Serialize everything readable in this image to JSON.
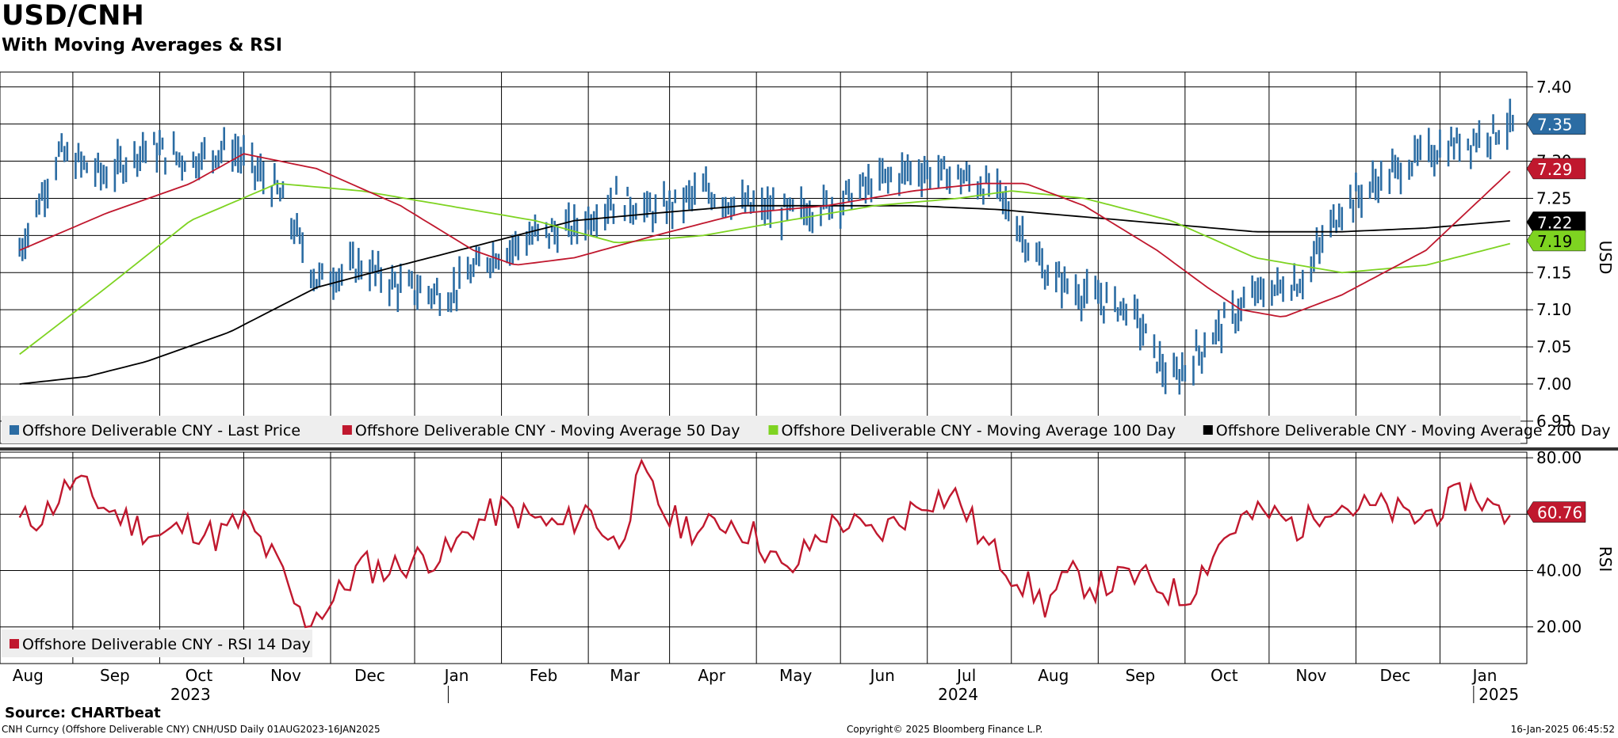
{
  "title": "USD/CNH",
  "subtitle": "With Moving Averages & RSI",
  "source": "Source: CHARTbeat",
  "footer": {
    "left": "CNH Curncy (Offshore Deliverable CNY) CNH/USD  Daily 01AUG2023-16JAN2025",
    "center": "Copyright© 2025 Bloomberg Finance L.P.",
    "right": "16-Jan-2025 06:45:52"
  },
  "colors": {
    "price": "#2b6ca3",
    "ma50": "#c0182e",
    "ma100": "#7ed321",
    "ma200": "#000000",
    "rsi": "#c0182e"
  },
  "chart_data": [
    {
      "type": "bar",
      "note_type": "ohlc price bars with moving-average lines",
      "ylabel": "USD",
      "ylim": [
        6.92,
        7.42
      ],
      "yticks": [
        "7.40",
        "7.35",
        "7.30",
        "7.25",
        "7.20",
        "7.15",
        "7.10",
        "7.05",
        "7.00",
        "6.95"
      ],
      "grid": true,
      "legend_placement": "bottom",
      "months": [
        "Aug",
        "Sep",
        "Oct",
        "Nov",
        "Dec",
        "Jan",
        "Feb",
        "Mar",
        "Apr",
        "May",
        "Jun",
        "Jul",
        "Aug",
        "Sep",
        "Oct",
        "Nov",
        "Dec",
        "Jan"
      ],
      "years": [
        "2023",
        "2024",
        "2025"
      ],
      "series": [
        {
          "name": "Offshore Deliverable CNY - Last Price",
          "key": "price",
          "last_label": "7.35",
          "x": [
            "2023-08-01",
            "2023-08-15",
            "2023-09-01",
            "2023-09-15",
            "2023-10-01",
            "2023-10-15",
            "2023-11-01",
            "2023-11-15",
            "2023-12-01",
            "2023-12-15",
            "2024-01-01",
            "2024-01-15",
            "2024-02-01",
            "2024-02-15",
            "2024-03-01",
            "2024-03-15",
            "2024-04-01",
            "2024-04-15",
            "2024-05-01",
            "2024-05-15",
            "2024-06-01",
            "2024-06-15",
            "2024-07-01",
            "2024-07-15",
            "2024-08-01",
            "2024-08-15",
            "2024-09-01",
            "2024-09-15",
            "2024-10-01",
            "2024-10-15",
            "2024-11-01",
            "2024-11-15",
            "2024-12-01",
            "2024-12-15",
            "2025-01-01",
            "2025-01-15"
          ],
          "values": [
            7.18,
            7.31,
            7.28,
            7.32,
            7.3,
            7.32,
            7.26,
            7.14,
            7.16,
            7.13,
            7.12,
            7.17,
            7.2,
            7.21,
            7.25,
            7.23,
            7.26,
            7.24,
            7.23,
            7.24,
            7.27,
            7.29,
            7.28,
            7.26,
            7.15,
            7.12,
            7.1,
            7.0,
            7.07,
            7.12,
            7.14,
            7.24,
            7.28,
            7.31,
            7.33,
            7.35
          ]
        },
        {
          "name": "Offshore Deliverable CNY - Moving Average 50 Day",
          "key": "ma50",
          "last_label": "7.29",
          "x": [
            "2023-08-01",
            "2023-09-01",
            "2023-10-01",
            "2023-10-20",
            "2023-11-15",
            "2023-12-15",
            "2024-01-10",
            "2024-01-25",
            "2024-02-15",
            "2024-03-15",
            "2024-04-15",
            "2024-05-15",
            "2024-06-15",
            "2024-07-10",
            "2024-07-25",
            "2024-08-15",
            "2024-09-10",
            "2024-09-28",
            "2024-10-10",
            "2024-10-25",
            "2024-11-15",
            "2024-12-15",
            "2025-01-15"
          ],
          "values": [
            7.18,
            7.23,
            7.27,
            7.31,
            7.29,
            7.24,
            7.18,
            7.16,
            7.17,
            7.2,
            7.23,
            7.24,
            7.26,
            7.27,
            7.27,
            7.24,
            7.18,
            7.13,
            7.1,
            7.09,
            7.12,
            7.18,
            7.29
          ]
        },
        {
          "name": "Offshore Deliverable CNY - Moving Average 100 Day",
          "key": "ma100",
          "last_label": "7.19",
          "x": [
            "2023-08-01",
            "2023-09-01",
            "2023-10-01",
            "2023-11-01",
            "2023-12-01",
            "2024-01-01",
            "2024-02-01",
            "2024-03-01",
            "2024-04-01",
            "2024-05-01",
            "2024-06-01",
            "2024-07-01",
            "2024-07-20",
            "2024-08-15",
            "2024-09-15",
            "2024-10-15",
            "2024-11-15",
            "2024-12-15",
            "2025-01-15"
          ],
          "values": [
            7.04,
            7.13,
            7.22,
            7.27,
            7.26,
            7.24,
            7.22,
            7.19,
            7.2,
            7.22,
            7.24,
            7.25,
            7.26,
            7.25,
            7.22,
            7.17,
            7.15,
            7.16,
            7.19
          ]
        },
        {
          "name": "Offshore Deliverable CNY - Moving Average 200 Day",
          "key": "ma200",
          "last_label": "7.22",
          "x": [
            "2023-08-01",
            "2023-08-25",
            "2023-09-15",
            "2023-10-15",
            "2023-11-15",
            "2023-12-15",
            "2024-01-15",
            "2024-02-15",
            "2024-03-15",
            "2024-04-15",
            "2024-05-15",
            "2024-06-15",
            "2024-07-15",
            "2024-08-15",
            "2024-09-15",
            "2024-10-15",
            "2024-11-15",
            "2024-12-15",
            "2025-01-15"
          ],
          "values": [
            7.0,
            7.01,
            7.03,
            7.07,
            7.13,
            7.16,
            7.19,
            7.22,
            7.23,
            7.24,
            7.24,
            7.24,
            7.235,
            7.225,
            7.215,
            7.205,
            7.205,
            7.21,
            7.22
          ]
        }
      ]
    },
    {
      "type": "line",
      "ylabel": "RSI",
      "ylim": [
        7,
        82
      ],
      "yticks": [
        "80.00",
        "60.00",
        "40.00",
        "20.00"
      ],
      "grid": true,
      "legend_placement": "bottom-left",
      "series": [
        {
          "name": "Offshore Deliverable CNY - RSI 14 Day",
          "key": "rsi",
          "last_label": "60.76",
          "x": [
            "2023-08-01",
            "2023-08-10",
            "2023-08-20",
            "2023-09-01",
            "2023-09-10",
            "2023-09-20",
            "2023-10-01",
            "2023-10-10",
            "2023-10-20",
            "2023-11-01",
            "2023-11-10",
            "2023-11-20",
            "2023-12-01",
            "2023-12-10",
            "2023-12-20",
            "2024-01-01",
            "2024-01-10",
            "2024-01-20",
            "2024-02-01",
            "2024-02-10",
            "2024-02-20",
            "2024-03-01",
            "2024-03-10",
            "2024-03-20",
            "2024-04-01",
            "2024-04-10",
            "2024-04-20",
            "2024-05-01",
            "2024-05-10",
            "2024-05-20",
            "2024-06-01",
            "2024-06-10",
            "2024-06-20",
            "2024-07-01",
            "2024-07-10",
            "2024-07-20",
            "2024-08-01",
            "2024-08-10",
            "2024-08-20",
            "2024-09-01",
            "2024-09-10",
            "2024-09-20",
            "2024-10-01",
            "2024-10-10",
            "2024-10-20",
            "2024-11-01",
            "2024-11-10",
            "2024-11-20",
            "2024-12-01",
            "2024-12-10",
            "2024-12-20",
            "2025-01-01",
            "2025-01-10",
            "2025-01-15"
          ],
          "values": [
            57,
            60,
            72,
            62,
            57,
            52,
            56,
            52,
            58,
            42,
            22,
            28,
            42,
            40,
            44,
            46,
            56,
            62,
            58,
            55,
            62,
            48,
            74,
            58,
            54,
            58,
            52,
            38,
            50,
            58,
            52,
            58,
            66,
            66,
            50,
            40,
            28,
            38,
            34,
            38,
            35,
            30,
            48,
            58,
            60,
            55,
            65,
            62,
            62,
            58,
            62,
            68,
            60,
            60.76
          ]
        }
      ]
    }
  ]
}
